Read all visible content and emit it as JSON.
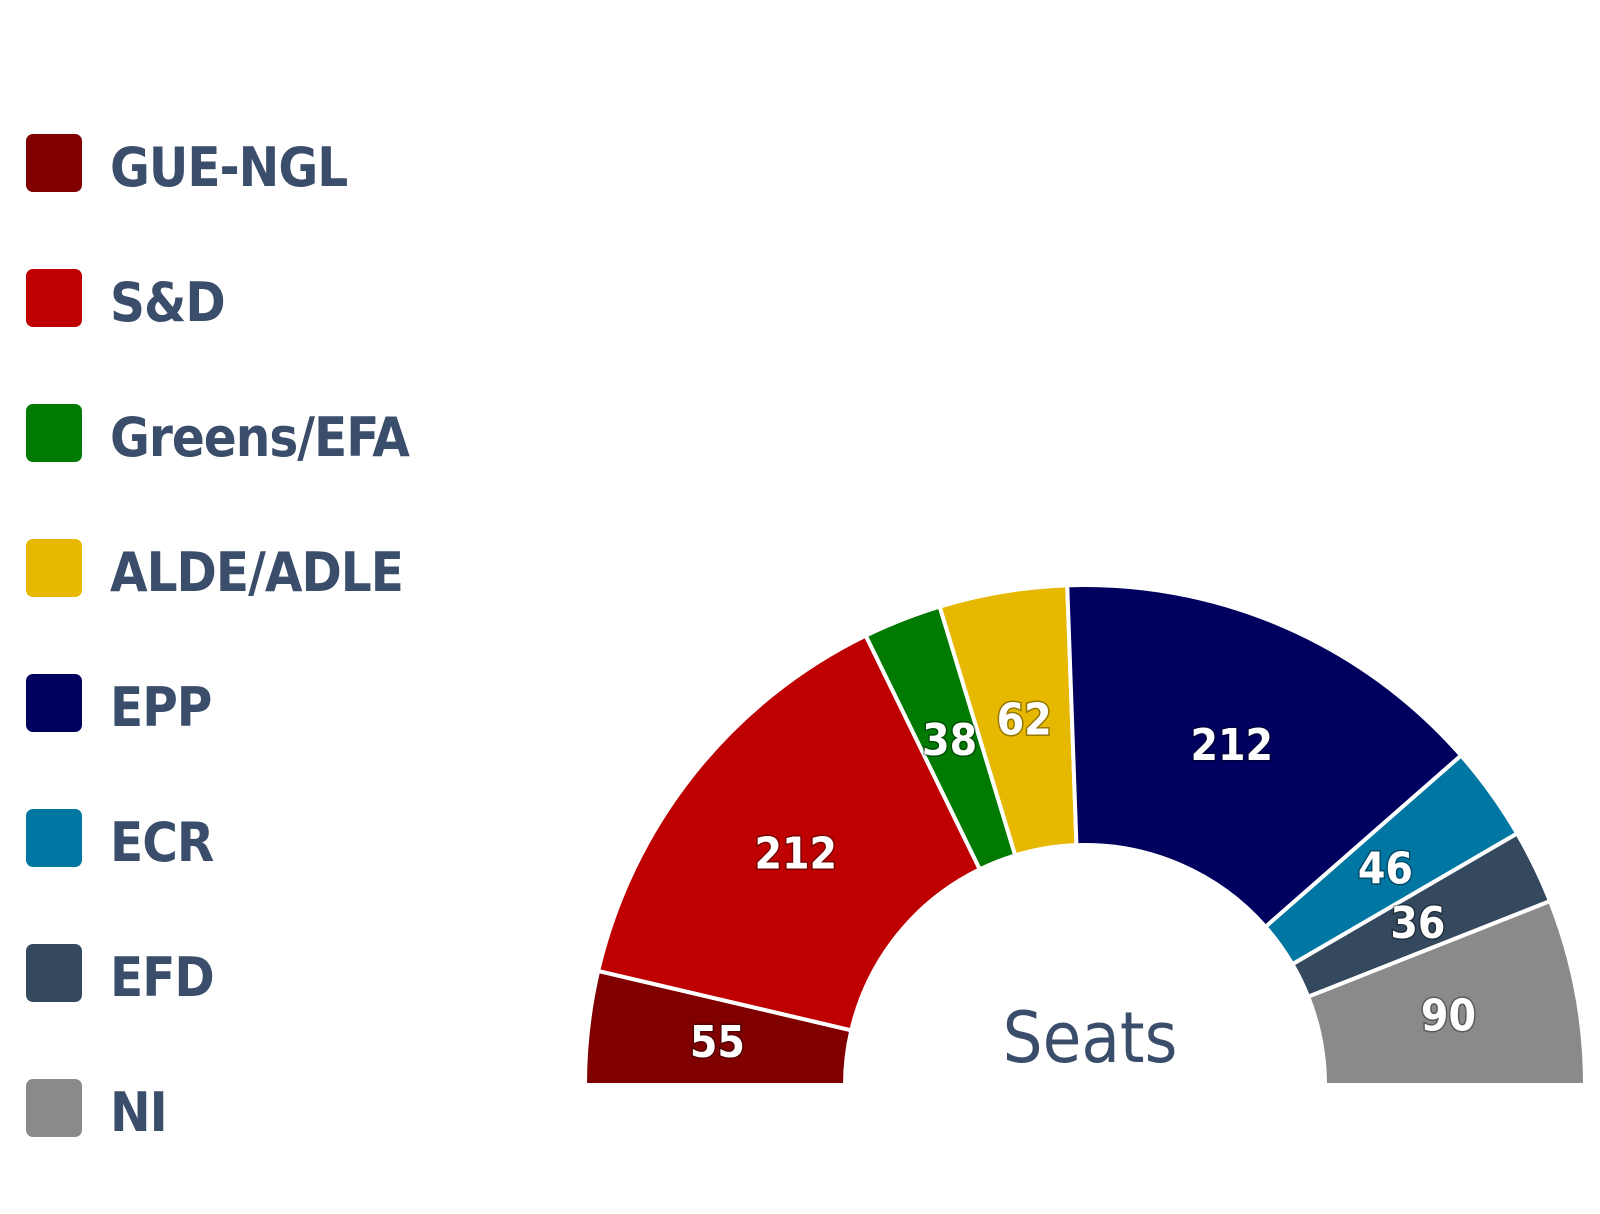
{
  "chart_data": {
    "type": "pie",
    "subtype": "semicircle",
    "center_label": "Seats",
    "legend_position": "left",
    "slices": [
      {
        "label": "GUE-NGL",
        "value": 55,
        "color": "#800000"
      },
      {
        "label": "S&D",
        "value": 212,
        "color": "#bf0000"
      },
      {
        "label": "Greens/EFA",
        "value": 38,
        "color": "#007a00"
      },
      {
        "label": "ALDE/ADLE",
        "value": 62,
        "color": "#e6b800"
      },
      {
        "label": "EPP",
        "value": 212,
        "color": "#00005f"
      },
      {
        "label": "ECR",
        "value": 46,
        "color": "#0076a3"
      },
      {
        "label": "EFD",
        "value": 36,
        "color": "#34495e"
      },
      {
        "label": "NI",
        "value": 90,
        "color": "#8a8a8a"
      }
    ]
  }
}
